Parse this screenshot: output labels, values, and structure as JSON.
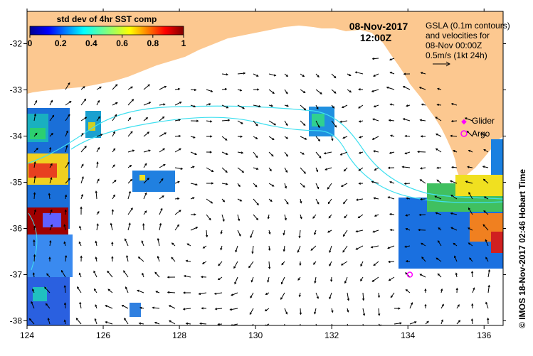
{
  "colorbar": {
    "title": "std dev of 4hr SST comp",
    "ticks": [
      "0",
      "0.2",
      "0.4",
      "0.6",
      "0.8",
      "1"
    ],
    "tick_values": [
      0,
      0.2,
      0.4,
      0.6,
      0.8,
      1
    ]
  },
  "datetime": {
    "date": "08-Nov-2017",
    "time": "12:00Z"
  },
  "gsla_note": {
    "line1": "GSLA (0.1m contours)",
    "line2": "and velocities for",
    "line3": "08-Nov 00:00Z",
    "line4": "0.5m/s (1kt 24h)"
  },
  "legend": {
    "glider": "Glider",
    "argo": "Argo",
    "glider_color": "#ff00ff",
    "argo_color": "#ff00ff"
  },
  "credit": "© IMOS 18-Nov-2017 02:46 Hobart Time",
  "axes": {
    "x_ticks": [
      "124",
      "126",
      "128",
      "130",
      "132",
      "134",
      "136"
    ],
    "x_values": [
      124,
      126,
      128,
      130,
      132,
      134,
      136
    ],
    "y_ticks": [
      "-32",
      "-33",
      "-34",
      "-35",
      "-36",
      "-37",
      "-38"
    ],
    "y_values": [
      -32,
      -33,
      -34,
      -35,
      -36,
      -37,
      -38
    ],
    "lon_range": [
      124,
      136.5
    ],
    "lat_range": [
      -38.1,
      -31.3
    ]
  },
  "argo_float": {
    "lon": 134.05,
    "lat": -37.0
  },
  "colors": {
    "land": "#fcc890",
    "contour": "#40e0f0",
    "ocean": "#ffffff"
  }
}
